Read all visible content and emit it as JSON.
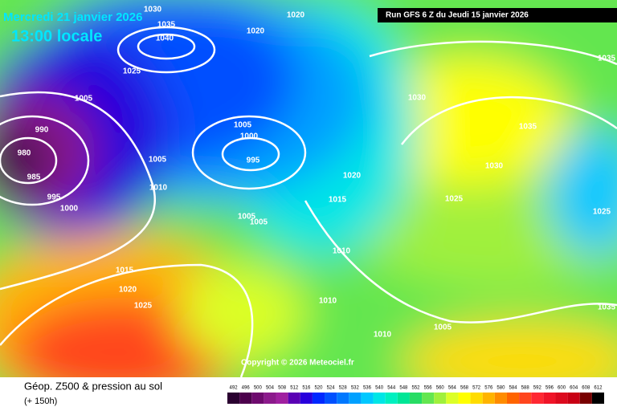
{
  "header": {
    "date": "Mercredi 21 janvier 2026",
    "time": "13:00 locale",
    "run": "Run GFS 6 Z du Jeudi 15 janvier 2026"
  },
  "isobar_labels": [
    "1030",
    "1020",
    "1035",
    "1040",
    "1020",
    "1025",
    "1005",
    "990",
    "980",
    "985",
    "995",
    "1000",
    "1005",
    "1010",
    "1005",
    "1000",
    "995",
    "1005",
    "1005",
    "1020",
    "1015",
    "1010",
    "1015",
    "1020",
    "1025",
    "1010",
    "1010",
    "1005",
    "1030",
    "1035",
    "1030",
    "1025",
    "1025",
    "1035",
    "1035"
  ],
  "copyright": "Copyright © 2026 Meteociel.fr",
  "footer": {
    "title": "Géop. Z500 & pression au sol",
    "lead": "(+ 150h)"
  },
  "legend": {
    "items": [
      {
        "label": "492",
        "color": "#2a0030"
      },
      {
        "label": "496",
        "color": "#4c004c"
      },
      {
        "label": "500",
        "color": "#6e0a6e"
      },
      {
        "label": "504",
        "color": "#8c1a8c"
      },
      {
        "label": "508",
        "color": "#a020a0"
      },
      {
        "label": "512",
        "color": "#5a00b4"
      },
      {
        "label": "516",
        "color": "#2800dc"
      },
      {
        "label": "520",
        "color": "#0028ff"
      },
      {
        "label": "524",
        "color": "#0050ff"
      },
      {
        "label": "528",
        "color": "#0078ff"
      },
      {
        "label": "532",
        "color": "#00a0ff"
      },
      {
        "label": "536",
        "color": "#00c8ff"
      },
      {
        "label": "540",
        "color": "#00e6e6"
      },
      {
        "label": "544",
        "color": "#00f0c0"
      },
      {
        "label": "548",
        "color": "#00e696"
      },
      {
        "label": "552",
        "color": "#28dc64"
      },
      {
        "label": "556",
        "color": "#64e650"
      },
      {
        "label": "560",
        "color": "#a0f03c"
      },
      {
        "label": "564",
        "color": "#dcff28"
      },
      {
        "label": "568",
        "color": "#ffff00"
      },
      {
        "label": "572",
        "color": "#ffdc00"
      },
      {
        "label": "576",
        "color": "#ffb400"
      },
      {
        "label": "580",
        "color": "#ff8c00"
      },
      {
        "label": "584",
        "color": "#ff6400"
      },
      {
        "label": "588",
        "color": "#ff461e"
      },
      {
        "label": "592",
        "color": "#ff2832"
      },
      {
        "label": "596",
        "color": "#f01428"
      },
      {
        "label": "600",
        "color": "#dc0a1e"
      },
      {
        "label": "604",
        "color": "#c80014"
      },
      {
        "label": "608",
        "color": "#780000"
      },
      {
        "label": "612",
        "color": "#000000"
      }
    ]
  }
}
